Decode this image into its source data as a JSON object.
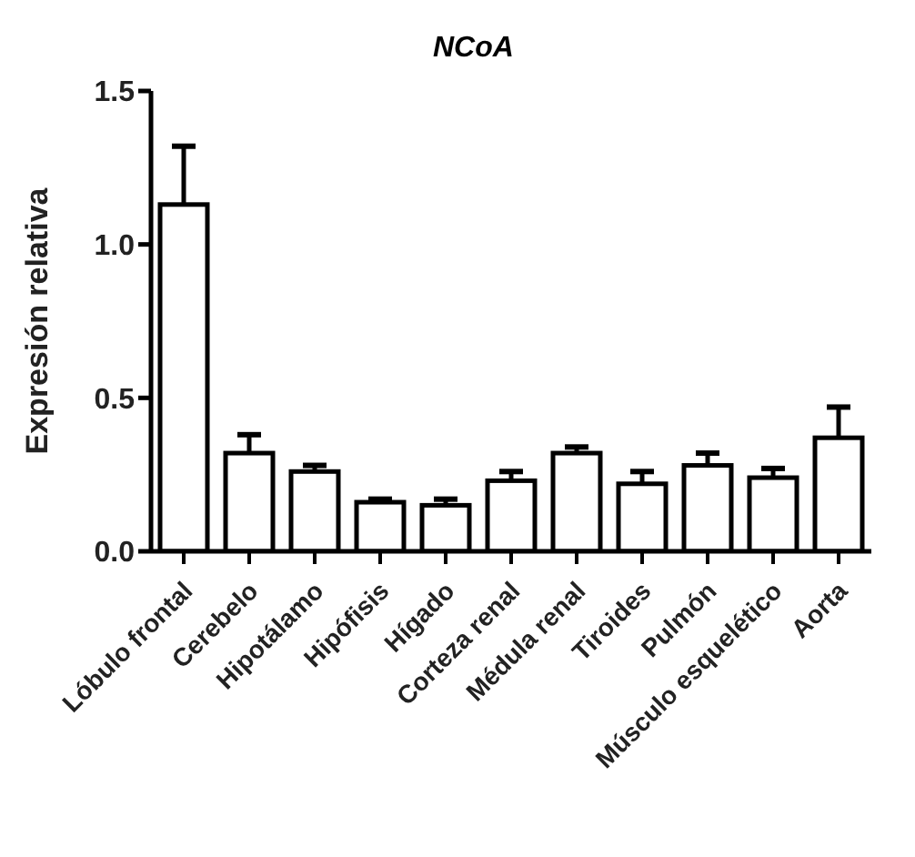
{
  "chart_data": {
    "type": "bar",
    "title": "NCoA",
    "ylabel": "Expresión relativa",
    "categories": [
      "Lóbulo frontal",
      "Cerebelo",
      "Hipotálamo",
      "Hipófisis",
      "Hígado",
      "Corteza renal",
      "Médula renal",
      "Tiroides",
      "Pulmón",
      "Músculo esquelético",
      "Aorta"
    ],
    "values": [
      1.13,
      0.32,
      0.26,
      0.16,
      0.15,
      0.23,
      0.32,
      0.22,
      0.28,
      0.24,
      0.37
    ],
    "errors": [
      [
        1.13,
        1.32
      ],
      [
        0.32,
        0.38
      ],
      [
        0.26,
        0.28
      ],
      [
        0.16,
        0.17
      ],
      [
        0.15,
        0.17
      ],
      [
        0.23,
        0.26
      ],
      [
        0.32,
        0.34
      ],
      [
        0.22,
        0.26
      ],
      [
        0.28,
        0.32
      ],
      [
        0.24,
        0.27
      ],
      [
        0.37,
        0.47
      ]
    ],
    "color": "#ffffff",
    "ylim": [
      0,
      1.5
    ],
    "yticks": [
      {
        "value": 0,
        "label": "0.0"
      },
      0.5,
      {
        "value": 1,
        "label": "1.0"
      },
      1.5
    ],
    "grid": false,
    "legend": false
  }
}
